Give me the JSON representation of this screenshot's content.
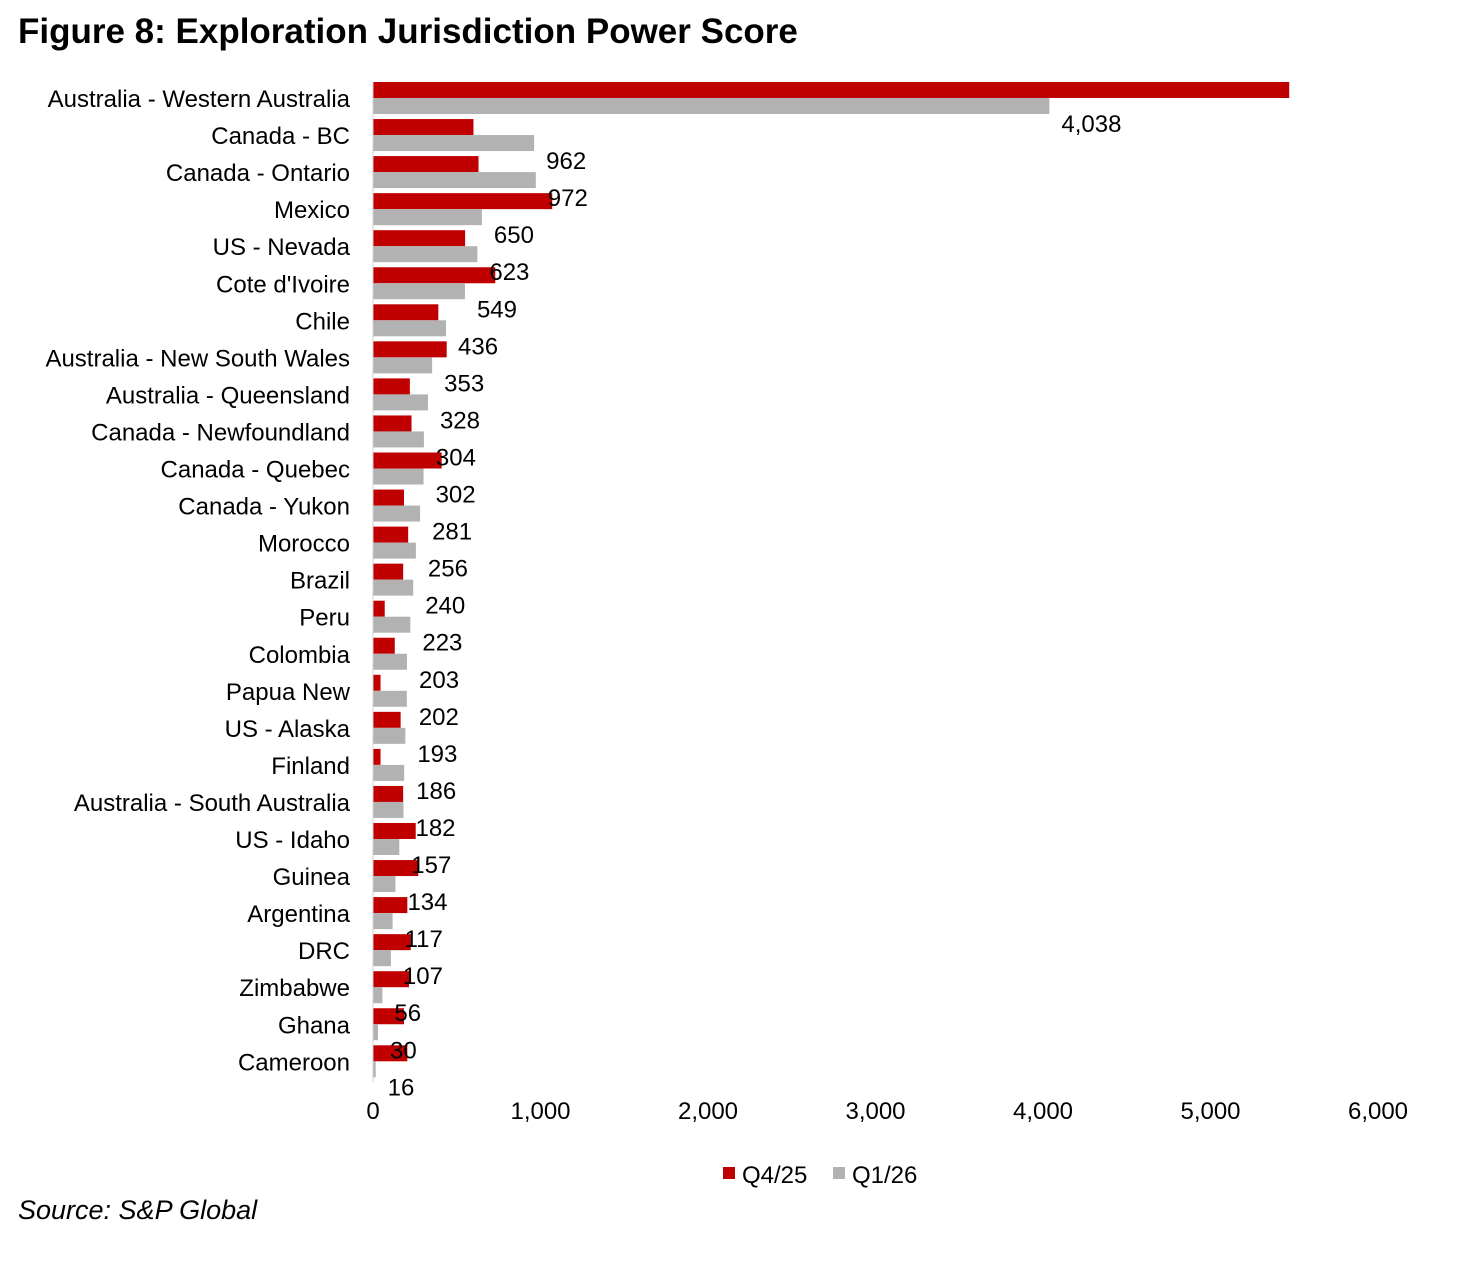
{
  "title": "Figure 8: Exploration Jurisdiction Power Score",
  "source": "Source: S&P Global",
  "colors": {
    "q4": "#C00000",
    "q1": "#B2B2B2"
  },
  "chart_data": {
    "type": "bar",
    "orientation": "horizontal",
    "xlim": [
      0,
      6000
    ],
    "xticks": [
      0,
      1000,
      2000,
      3000,
      4000,
      5000,
      6000
    ],
    "xtick_labels": [
      "0",
      "1,000",
      "2,000",
      "3,000",
      "4,000",
      "5,000",
      "6,000"
    ],
    "legend_position": "bottom",
    "grid": false,
    "categories": [
      "Australia - Western Australia",
      "Canada - BC",
      "Canada - Ontario",
      "Mexico",
      "US - Nevada",
      "Cote d'Ivoire",
      "Chile",
      "Australia - New South Wales",
      "Australia - Queensland",
      "Canada - Newfoundland",
      "Canada - Quebec",
      "Canada - Yukon",
      "Morocco",
      "Brazil",
      "Peru",
      "Colombia",
      "Papua New",
      "US - Alaska",
      "Finland",
      "Australia - South Australia",
      "US - Idaho",
      "Guinea",
      "Argentina",
      "DRC",
      "Zimbabwe",
      "Ghana",
      "Cameroon"
    ],
    "series": [
      {
        "name": "Q4/25",
        "values": [
          5470,
          600,
          630,
          1070,
          550,
          730,
          390,
          440,
          220,
          230,
          410,
          185,
          210,
          180,
          70,
          130,
          45,
          165,
          45,
          180,
          255,
          270,
          205,
          225,
          215,
          185,
          205
        ]
      },
      {
        "name": "Q1/26",
        "values": [
          4038,
          962,
          972,
          650,
          623,
          549,
          436,
          353,
          328,
          304,
          302,
          281,
          256,
          240,
          223,
          203,
          202,
          193,
          186,
          182,
          157,
          134,
          117,
          107,
          56,
          30,
          16
        ],
        "labels": [
          "4,038",
          "962",
          "972",
          "650",
          "623",
          "549",
          "436",
          "353",
          "328",
          "304",
          "302",
          "281",
          "256",
          "240",
          "223",
          "203",
          "202",
          "193",
          "186",
          "182",
          "157",
          "134",
          "117",
          "107",
          "56",
          "30",
          "16"
        ]
      }
    ]
  }
}
